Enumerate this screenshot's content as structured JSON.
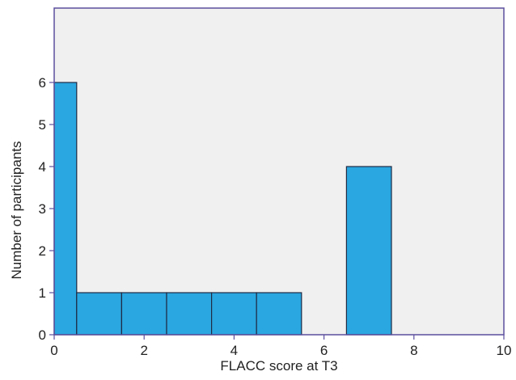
{
  "chart_data": {
    "type": "bar",
    "title": "",
    "xlabel": "FLACC score at T3",
    "ylabel": "Number of participants",
    "xlim": [
      0,
      10
    ],
    "ylim": [
      0,
      6
    ],
    "xticks": [
      "0",
      "2",
      "4",
      "6",
      "8",
      "10"
    ],
    "yticks": [
      "0",
      "1",
      "2",
      "3",
      "4",
      "5",
      "6"
    ],
    "bins": [
      {
        "x0": 0,
        "x1": 0.5,
        "value": 6
      },
      {
        "x0": 0.5,
        "x1": 1.5,
        "value": 1
      },
      {
        "x0": 1.5,
        "x1": 2.5,
        "value": 1
      },
      {
        "x0": 2.5,
        "x1": 3.5,
        "value": 1
      },
      {
        "x0": 3.5,
        "x1": 4.5,
        "value": 1
      },
      {
        "x0": 4.5,
        "x1": 5.5,
        "value": 1
      },
      {
        "x0": 6.5,
        "x1": 7.5,
        "value": 4
      }
    ],
    "grid": false,
    "colors": {
      "bar_fill": "#2aa7e0",
      "bar_stroke": "#1f2a44",
      "plot_background": "#f0f0f0",
      "frame": "#5b4f9e"
    }
  }
}
